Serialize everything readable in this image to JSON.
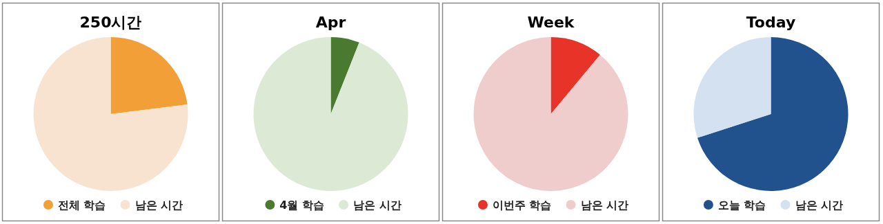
{
  "chart_data": [
    {
      "type": "pie",
      "title": "250시간",
      "categories": [
        "전체 학습",
        "남은 시간"
      ],
      "values": [
        23,
        77
      ],
      "colors": [
        "#f29f37",
        "#f7e3cf"
      ],
      "legend": "bottom"
    },
    {
      "type": "pie",
      "title": "Apr",
      "categories": [
        "4월 학습",
        "남은 시간"
      ],
      "values": [
        6,
        94
      ],
      "colors": [
        "#4a7a2f",
        "#dce9d5"
      ],
      "legend": "bottom"
    },
    {
      "type": "pie",
      "title": "Week",
      "categories": [
        "이번주 학습",
        "남은 시간"
      ],
      "values": [
        11,
        89
      ],
      "colors": [
        "#e83328",
        "#efcdcd"
      ],
      "legend": "bottom"
    },
    {
      "type": "pie",
      "title": "Today",
      "categories": [
        "오늘 학습",
        "남은 시간"
      ],
      "values": [
        70,
        30
      ],
      "colors": [
        "#21528e",
        "#d3e1f0"
      ],
      "legend": "bottom"
    }
  ]
}
